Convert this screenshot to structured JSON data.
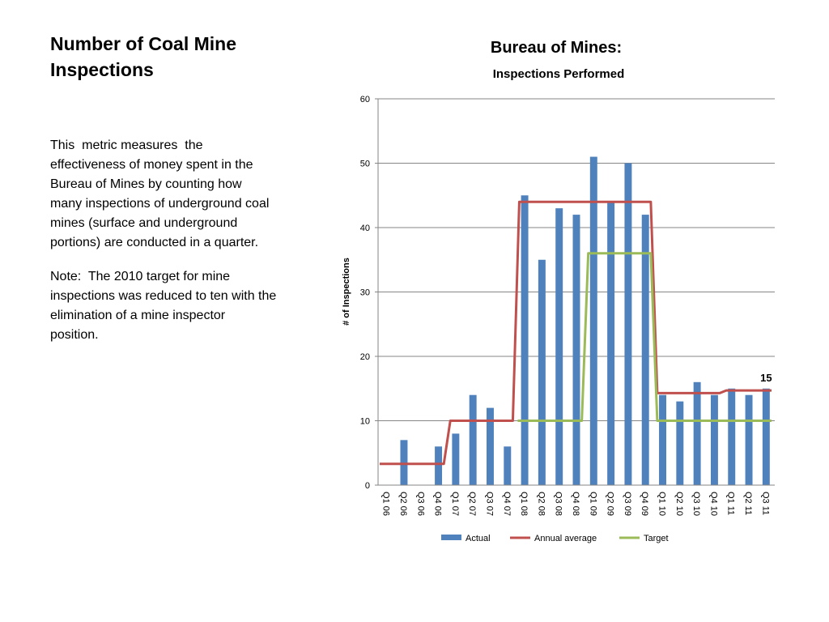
{
  "slide": {
    "title": "Number of Coal Mine Inspections",
    "paragraphs": [
      "This  metric measures  the effectiveness of money spent in the Bureau of Mines by counting how many inspections of underground coal mines (surface and underground portions) are conducted in a quarter.",
      "Note:  The 2010 target for mine inspections was reduced to ten with the elimination of a mine inspector position."
    ]
  },
  "chart_data": {
    "type": "bar",
    "title": "Bureau of Mines:",
    "subtitle": "Inspections Performed",
    "xlabel": "",
    "ylabel": "# of Inspections",
    "ylim": [
      0,
      60
    ],
    "yticks": [
      0,
      10,
      20,
      30,
      40,
      50,
      60
    ],
    "grid": true,
    "legend_position": "bottom",
    "categories": [
      "Q1 06",
      "Q2 06",
      "Q3 06",
      "Q4 06",
      "Q1 07",
      "Q2 07",
      "Q3 07",
      "Q4 07",
      "Q1 08",
      "Q2 08",
      "Q3 08",
      "Q4 08",
      "Q1 09",
      "Q2 09",
      "Q3 09",
      "Q4 09",
      "Q1 10",
      "Q2 10",
      "Q3 10",
      "Q4 10",
      "Q1 11",
      "Q2 11",
      "Q3 11"
    ],
    "series": [
      {
        "name": "Actual",
        "type": "bar",
        "color": "#4f81bd",
        "values": [
          null,
          7,
          null,
          6,
          8,
          14,
          12,
          6,
          45,
          35,
          43,
          42,
          51,
          44,
          50,
          42,
          14,
          13,
          16,
          14,
          15,
          14,
          15
        ]
      },
      {
        "name": "Annual average",
        "type": "line",
        "color": "#c0504d",
        "values": [
          3.3,
          3.3,
          3.3,
          3.3,
          10,
          10,
          10,
          10,
          44,
          44,
          44,
          44,
          44,
          44,
          44,
          44,
          14.3,
          14.3,
          14.3,
          14.3,
          14.7,
          14.7,
          14.7
        ]
      },
      {
        "name": "Target",
        "type": "line",
        "color": "#9bbb59",
        "values": [
          null,
          null,
          null,
          null,
          null,
          null,
          null,
          null,
          10,
          10,
          10,
          10,
          36,
          36,
          36,
          36,
          10,
          10,
          10,
          10,
          10,
          10,
          10
        ]
      }
    ],
    "annotations": [
      {
        "category": "Q3 11",
        "text": "15"
      }
    ]
  }
}
